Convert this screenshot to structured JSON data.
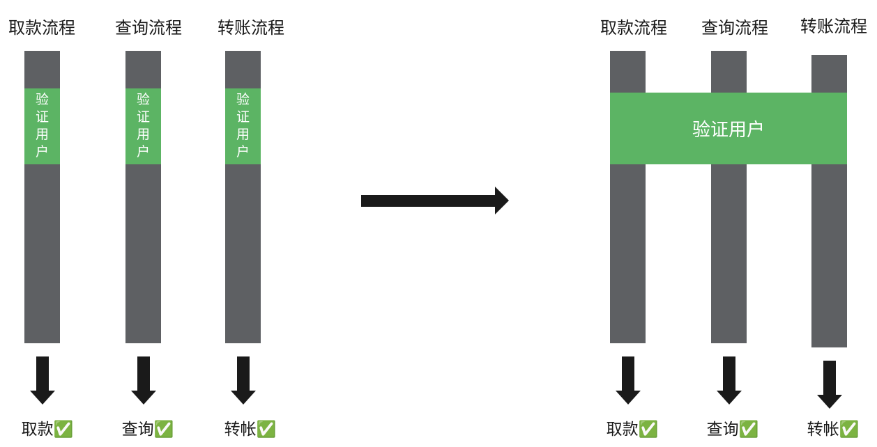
{
  "colors": {
    "bar": "#5e6063",
    "verify": "#5cb464",
    "arrow": "#1a1a1a"
  },
  "before": {
    "flows": [
      {
        "title": "取款流程",
        "verify_chars": [
          "验",
          "证",
          "用",
          "户"
        ],
        "result": "取款✅"
      },
      {
        "title": "查询流程",
        "verify_chars": [
          "验",
          "证",
          "用",
          "户"
        ],
        "result": "查询✅"
      },
      {
        "title": "转账流程",
        "verify_chars": [
          "验",
          "证",
          "用",
          "户"
        ],
        "result": "转帐✅"
      }
    ]
  },
  "transition_arrow": "right-arrow",
  "after": {
    "flows": [
      {
        "title": "取款流程",
        "result": "取款✅"
      },
      {
        "title": "查询流程",
        "result": "查询✅"
      },
      {
        "title": "转账流程",
        "result": "转帐✅"
      }
    ],
    "shared_verify_label": "验证用户"
  }
}
